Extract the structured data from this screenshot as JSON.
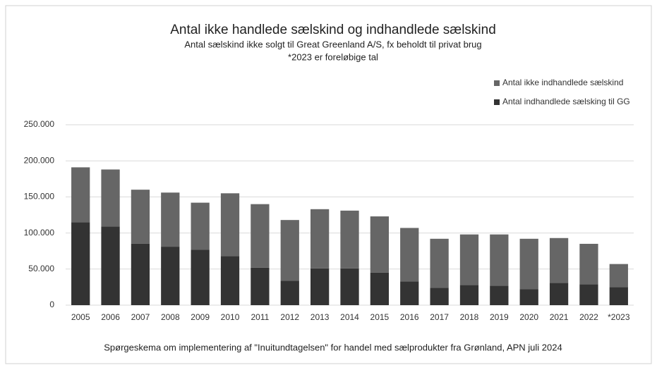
{
  "chart_data": {
    "type": "stacked_bar",
    "title": "Antal ikke handlede sælskind og indhandlede sælskind",
    "subtitle": "Antal sælskind ikke solgt til Great Greenland A/S, fx beholdt til privat brug",
    "subtitle2": "*2023 er foreløbige tal",
    "source": "Spørgeskema om implementering af \"Inuitundtagelsen\" for handel med sælprodukter fra Grønland, APN juli 2024",
    "categories": [
      "2005",
      "2006",
      "2007",
      "2008",
      "2009",
      "2010",
      "2011",
      "2012",
      "2013",
      "2014",
      "2015",
      "2016",
      "2017",
      "2018",
      "2019",
      "2020",
      "2021",
      "2022",
      "*2023"
    ],
    "series": [
      {
        "name": "Antal ikke indhandlede sælskind",
        "color": "#666666",
        "values": [
          76000,
          79000,
          75000,
          75000,
          65000,
          87000,
          88000,
          84000,
          82000,
          80000,
          78000,
          74000,
          68000,
          70000,
          71000,
          70000,
          62000,
          56000,
          32000
        ]
      },
      {
        "name": "Antal indhandlede sælsking til GG",
        "color": "#333333",
        "values": [
          115000,
          109000,
          85000,
          81000,
          77000,
          68000,
          52000,
          34000,
          51000,
          51000,
          45000,
          33000,
          24000,
          28000,
          27000,
          22000,
          31000,
          29000,
          25000
        ]
      }
    ],
    "ylim": [
      0,
      250000
    ],
    "yticks": [
      0,
      {
        "value": 50000,
        "label": "50.000"
      },
      {
        "value": 100000,
        "label": "100.000"
      },
      {
        "value": 150000,
        "label": "150.000"
      },
      {
        "value": 200000,
        "label": "200.000"
      },
      {
        "value": 250000,
        "label": "250.000"
      }
    ],
    "grid": true,
    "legend": "top-right"
  }
}
